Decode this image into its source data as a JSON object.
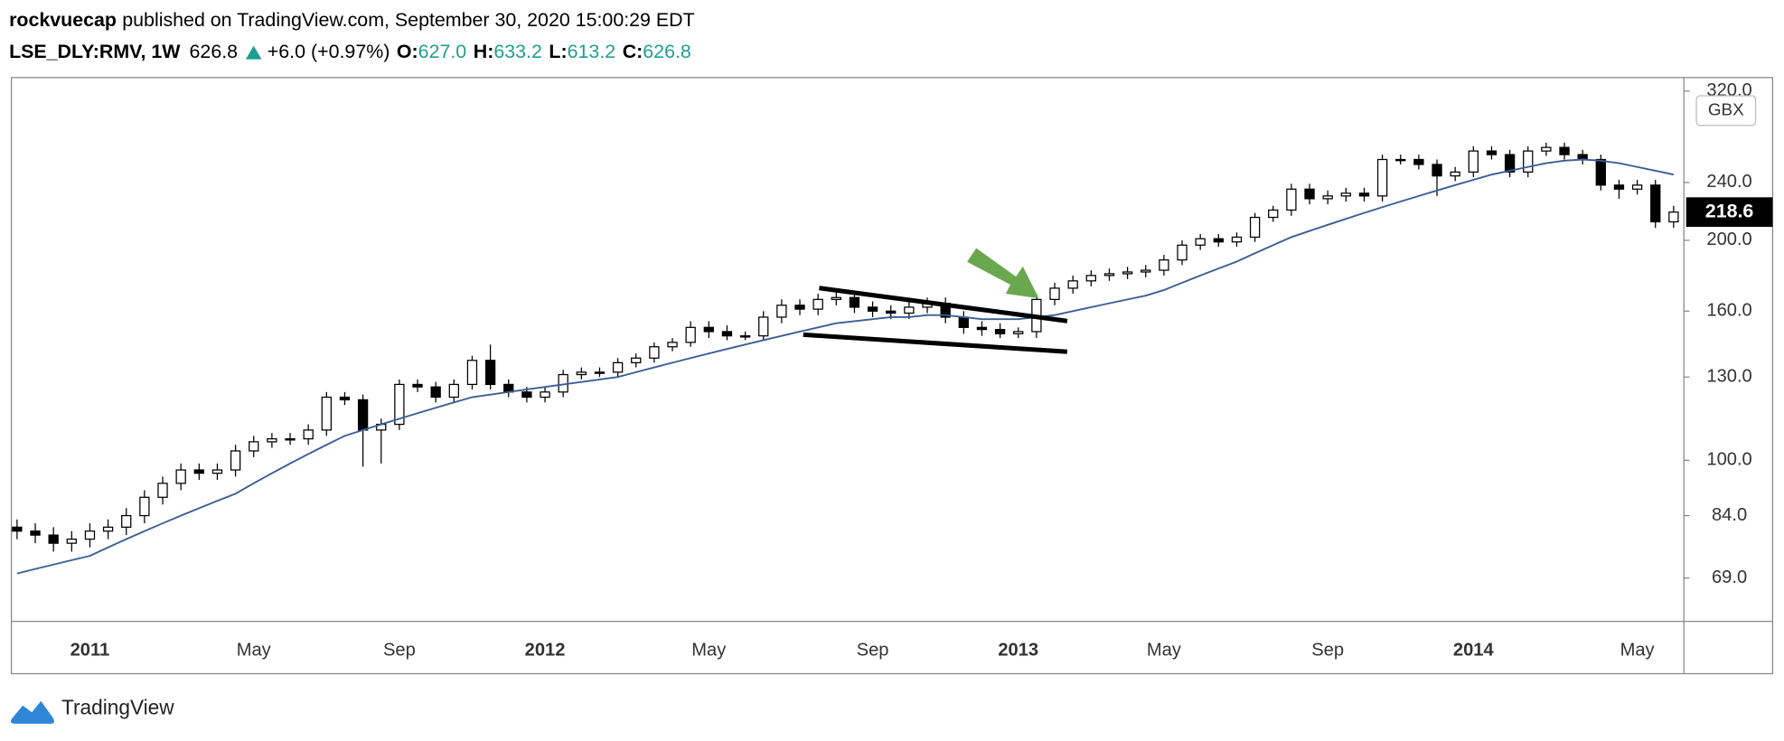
{
  "header": {
    "author": "rockvuecap",
    "published": "published on TradingView.com, September 30, 2020 15:00:29 EDT",
    "symbol": "LSE_DLY:RMV, 1W",
    "price": "626.8",
    "change": "+6.0 (+0.97%)",
    "open_label": "O:",
    "open": "627.0",
    "high_label": "H:",
    "high": "633.2",
    "low_label": "L:",
    "low": "613.2",
    "close_label": "C:",
    "close": "626.8"
  },
  "chart_data": {
    "type": "candlestick",
    "currency": "GBX",
    "log_scale": true,
    "categories": [
      null,
      null,
      null,
      null,
      "2011",
      null,
      null,
      null,
      null,
      null,
      null,
      null,
      null,
      "May",
      null,
      null,
      null,
      null,
      null,
      null,
      null,
      "Sep",
      null,
      null,
      null,
      null,
      null,
      null,
      null,
      "2012",
      null,
      null,
      null,
      null,
      null,
      null,
      null,
      null,
      "May",
      null,
      null,
      null,
      null,
      null,
      null,
      null,
      null,
      "Sep",
      null,
      null,
      null,
      null,
      null,
      null,
      null,
      "2013",
      null,
      null,
      null,
      null,
      null,
      null,
      null,
      "May",
      null,
      null,
      null,
      null,
      null,
      null,
      null,
      null,
      "Sep",
      null,
      null,
      null,
      null,
      null,
      null,
      null,
      "2014",
      null,
      null,
      null,
      null,
      null,
      null,
      null,
      null,
      "May",
      null,
      null
    ],
    "open": [
      81,
      80,
      79,
      77,
      78,
      80,
      81,
      84,
      89,
      93,
      97,
      96,
      97,
      103,
      106,
      107,
      107,
      110,
      122,
      121,
      110,
      112,
      127,
      126,
      122,
      127,
      137,
      127,
      124,
      122,
      124,
      131,
      132,
      132,
      136,
      138,
      143,
      145,
      152,
      150,
      148,
      148,
      157,
      163,
      161,
      166,
      167,
      162,
      160,
      159,
      162,
      164,
      157,
      152,
      151,
      149,
      150,
      166,
      172,
      176,
      179,
      180,
      181,
      182,
      188,
      197,
      201,
      199,
      202,
      215,
      220,
      235,
      228,
      230,
      232,
      230,
      258,
      258,
      254,
      245,
      248,
      265,
      262,
      248,
      265,
      268,
      262,
      258,
      238,
      235,
      238,
      212
    ],
    "high": [
      83,
      82,
      81,
      80,
      82,
      83,
      86,
      91,
      95,
      99,
      99,
      99,
      105,
      108,
      109,
      109,
      112,
      124,
      124,
      123,
      114,
      129,
      129,
      128,
      129,
      139,
      144,
      129,
      126,
      126,
      133,
      134,
      134,
      138,
      140,
      145,
      147,
      155,
      155,
      153,
      150,
      160,
      166,
      166,
      169,
      170,
      170,
      165,
      163,
      165,
      167,
      167,
      160,
      155,
      154,
      152,
      169,
      175,
      179,
      182,
      183,
      184,
      185,
      191,
      200,
      204,
      204,
      205,
      218,
      223,
      239,
      239,
      234,
      236,
      236,
      262,
      262,
      262,
      258,
      252,
      269,
      269,
      266,
      269,
      272,
      272,
      266,
      262,
      242,
      242,
      242,
      223
    ],
    "low": [
      78,
      77,
      75,
      75,
      76,
      78,
      79,
      82,
      87,
      91,
      94,
      94,
      95,
      101,
      104,
      105,
      105,
      108,
      119,
      98,
      99,
      110,
      124,
      120,
      120,
      125,
      125,
      122,
      120,
      120,
      122,
      129,
      130,
      130,
      134,
      136,
      141,
      143,
      147,
      146,
      146,
      146,
      154,
      158,
      158,
      163,
      159,
      157,
      156,
      156,
      159,
      154,
      149,
      148,
      147,
      147,
      147,
      163,
      169,
      173,
      176,
      177,
      178,
      179,
      185,
      194,
      196,
      196,
      199,
      212,
      216,
      224,
      224,
      226,
      226,
      226,
      254,
      250,
      230,
      241,
      244,
      258,
      244,
      244,
      261,
      258,
      254,
      234,
      228,
      231,
      208,
      208
    ],
    "close": [
      80,
      79,
      77,
      78,
      80,
      81,
      84,
      89,
      93,
      97,
      96,
      97,
      103,
      106,
      107,
      107,
      110,
      122,
      121,
      110,
      112,
      127,
      126,
      122,
      127,
      137,
      127,
      124,
      122,
      124,
      131,
      132,
      132,
      136,
      138,
      143,
      145,
      152,
      150,
      148,
      148,
      157,
      163,
      161,
      166,
      167,
      162,
      160,
      159,
      162,
      164,
      157,
      152,
      151,
      149,
      150,
      166,
      172,
      176,
      179,
      180,
      181,
      182,
      188,
      197,
      201,
      199,
      202,
      215,
      220,
      235,
      228,
      230,
      232,
      230,
      258,
      258,
      254,
      245,
      248,
      265,
      262,
      248,
      265,
      268,
      262,
      258,
      238,
      235,
      238,
      212,
      218.6
    ],
    "ma": {
      "color": "#3b5e96",
      "values": [
        70,
        71,
        72,
        73,
        74,
        76,
        78,
        80,
        82,
        84,
        86,
        88,
        90,
        93,
        96,
        99,
        102,
        105,
        108,
        110,
        112,
        114,
        116,
        118,
        120,
        122,
        123,
        124,
        125,
        126,
        127,
        128,
        129,
        130,
        132,
        134,
        136,
        138,
        140,
        142,
        144,
        146,
        148,
        150,
        152,
        154,
        155,
        156,
        157,
        157,
        158,
        158,
        157,
        156,
        156,
        156,
        157,
        158,
        160,
        162,
        164,
        166,
        168,
        171,
        175,
        179,
        183,
        187,
        192,
        197,
        202,
        206,
        210,
        214,
        218,
        222,
        226,
        230,
        234,
        238,
        242,
        246,
        249,
        252,
        255,
        257,
        258,
        257,
        255,
        252,
        249,
        246
      ]
    },
    "up_color": "#ffffff",
    "down_color": "#000000",
    "wick_color": "#000000",
    "ylim": [
      60.2,
      334
    ],
    "yticks": [
      {
        "value": 69,
        "label": "69.0"
      },
      {
        "value": 84,
        "label": "84.0"
      },
      {
        "value": 100,
        "label": "100.0"
      },
      {
        "value": 130,
        "label": "130.0"
      },
      {
        "value": 160,
        "label": "160.0"
      },
      {
        "value": 200,
        "label": "200.0"
      },
      {
        "value": 240,
        "label": "240.0"
      },
      {
        "value": 320,
        "label": "320.0"
      }
    ]
  },
  "footer": {
    "brand": "TradingView"
  }
}
